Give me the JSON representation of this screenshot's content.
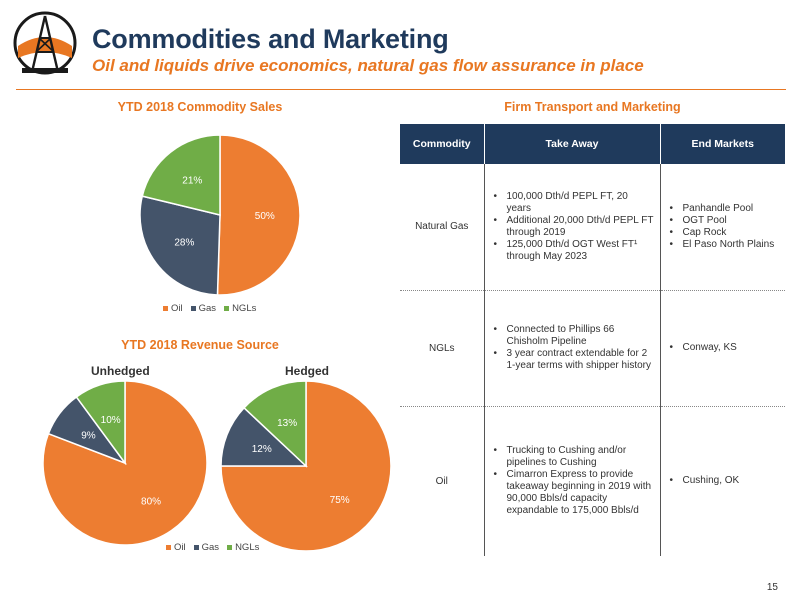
{
  "header": {
    "title": "Commodities and Marketing",
    "subtitle": "Oil and liquids drive economics, natural gas flow assurance in place"
  },
  "colors": {
    "oil": "#ed7d31",
    "gas": "#44546a",
    "ngls": "#70ad47",
    "accent": "#e87722",
    "navy": "#1f3a5c"
  },
  "chart_data": [
    {
      "type": "pie",
      "title": "YTD 2018 Commodity Sales",
      "categories": [
        "Oil",
        "Gas",
        "NGLs"
      ],
      "values": [
        50,
        28,
        21
      ],
      "labels": [
        "50%",
        "28%",
        "21%"
      ],
      "legend": "bottom"
    },
    {
      "type": "pie",
      "title": "YTD 2018 Revenue Source",
      "name": "Unhedged",
      "categories": [
        "Oil",
        "Gas",
        "NGLs"
      ],
      "values": [
        80,
        9,
        10
      ],
      "labels": [
        "80%",
        "9%",
        "10%"
      ],
      "legend": "bottom"
    },
    {
      "type": "pie",
      "title": "YTD 2018 Revenue Source",
      "name": "Hedged",
      "categories": [
        "Oil",
        "Gas",
        "NGLs"
      ],
      "values": [
        75,
        12,
        13
      ],
      "labels": [
        "75%",
        "12%",
        "13%"
      ],
      "legend": "bottom"
    }
  ],
  "legend": {
    "oil": "Oil",
    "gas": "Gas",
    "ngls": "NGLs"
  },
  "revenue_labels": {
    "unhedged": "Unhedged",
    "hedged": "Hedged"
  },
  "transport": {
    "title": "Firm Transport and Marketing",
    "headers": [
      "Commodity",
      "Take Away",
      "End Markets"
    ],
    "rows": [
      {
        "commodity": "Natural Gas",
        "take_away": [
          "100,000 Dth/d PEPL FT, 20 years",
          "Additional 20,000 Dth/d PEPL FT through 2019",
          "125,000 Dth/d OGT West FT¹ through May 2023"
        ],
        "end_markets": [
          "Panhandle Pool",
          "OGT Pool",
          "Cap Rock",
          "El Paso North Plains"
        ]
      },
      {
        "commodity": "NGLs",
        "take_away": [
          "Connected to Phillips 66 Chisholm Pipeline",
          "3 year contract extendable for 2 1-year terms with shipper history"
        ],
        "end_markets": [
          "Conway, KS"
        ]
      },
      {
        "commodity": "Oil",
        "take_away": [
          "Trucking to Cushing and/or pipelines to Cushing",
          "Cimarron Express to provide takeaway beginning in 2019 with 90,000 Bbls/d capacity expandable to 175,000 Bbls/d"
        ],
        "end_markets": [
          "Cushing, OK"
        ]
      }
    ]
  },
  "page_number": "15"
}
